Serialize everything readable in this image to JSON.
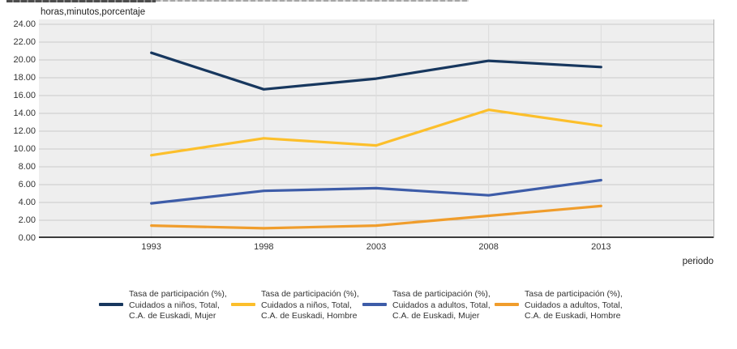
{
  "decoration": {
    "truncated_title_note": "clipped title bar at top edge"
  },
  "chart_data": {
    "type": "line",
    "title": "",
    "ylabel": "horas,minutos,porcentaje",
    "xlabel": "periodo",
    "categories": [
      "1993",
      "1998",
      "2003",
      "2008",
      "2013"
    ],
    "ylim": [
      0,
      24
    ],
    "ytick_step": 2,
    "yticks": [
      "24.00",
      "22.00",
      "20.00",
      "18.00",
      "16.00",
      "14.00",
      "12.00",
      "10.00",
      "8.00",
      "6.00",
      "4.00",
      "2.00",
      "0.00"
    ],
    "grid": true,
    "legend_position": "bottom",
    "plot_bg": "#eeeeee",
    "gridline_color": "#c9c9c9",
    "vertical_gridline_color": "#dcdcdc",
    "axis_line_color": "#000000",
    "series": [
      {
        "name": "Tasa de participación (%), Cuidados a niños, Total, C.A. de Euskadi, Mujer",
        "label_lines": [
          "Tasa de participación (%),",
          "Cuidados a niños, Total,",
          "C.A. de Euskadi, Mujer"
        ],
        "color": "#17375e",
        "values": [
          20.8,
          16.7,
          17.9,
          19.9,
          19.2
        ]
      },
      {
        "name": "Tasa de participación (%), Cuidados a niños, Total, C.A. de Euskadi, Hombre",
        "label_lines": [
          "Tasa de participación (%),",
          "Cuidados a niños, Total,",
          "C.A. de Euskadi, Hombre"
        ],
        "color": "#fcbf2b",
        "values": [
          9.3,
          11.2,
          10.4,
          14.4,
          12.6
        ]
      },
      {
        "name": "Tasa de participación (%), Cuidados a adultos, Total, C.A. de Euskadi, Mujer",
        "label_lines": [
          "Tasa de participación (%),",
          "Cuidados a adultos, Total,",
          "C.A. de Euskadi, Mujer"
        ],
        "color": "#3d5ca8",
        "values": [
          3.9,
          5.3,
          5.6,
          4.8,
          6.5
        ]
      },
      {
        "name": "Tasa de participación (%), Cuidados a adultos, Total, C.A. de Euskadi, Hombre",
        "label_lines": [
          "Tasa de participación (%),",
          "Cuidados a adultos, Total,",
          "C.A. de Euskadi, Hombre"
        ],
        "color": "#f09d2c",
        "values": [
          1.4,
          1.1,
          1.4,
          2.5,
          3.6
        ]
      }
    ]
  }
}
